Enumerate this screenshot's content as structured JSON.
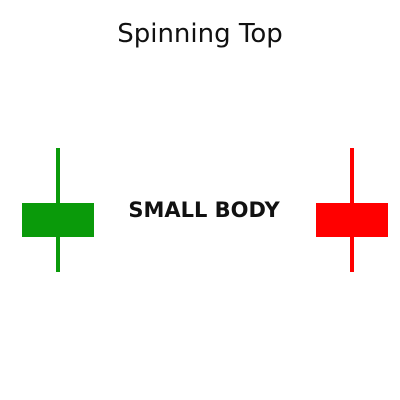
{
  "diagram": {
    "title": "Spinning Top",
    "center_label": "SMALL BODY"
  },
  "candles": [
    {
      "name": "bullish-candle",
      "color": "#0a9a0a"
    },
    {
      "name": "bearish-candle",
      "color": "#ff0000"
    }
  ]
}
